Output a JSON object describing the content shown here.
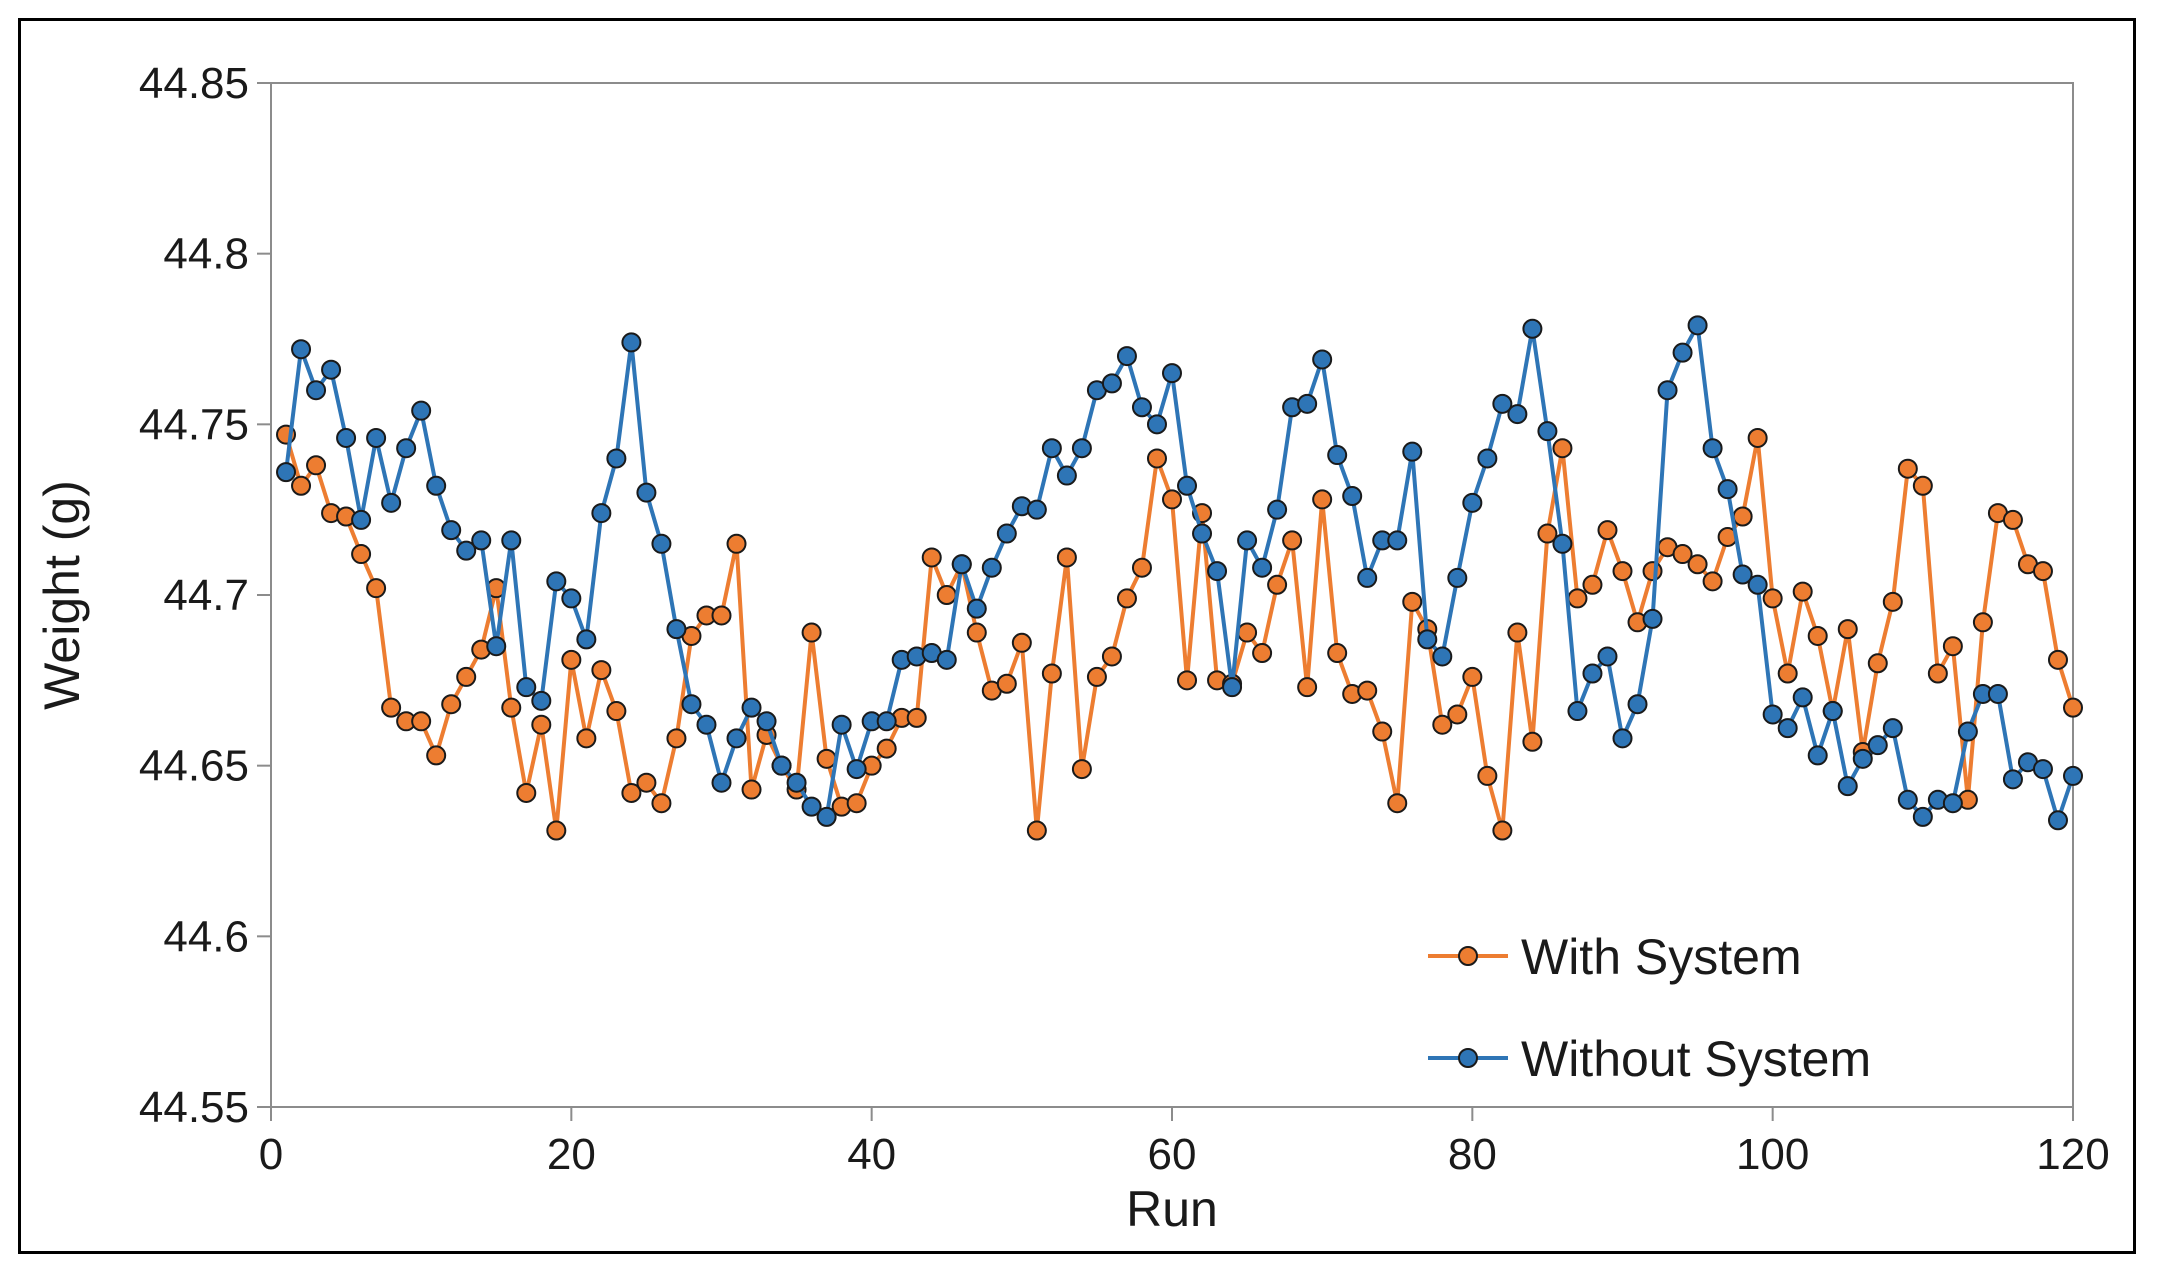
{
  "chart_data": {
    "type": "line",
    "title": "",
    "xlabel": "Run",
    "ylabel": "Weight (g)",
    "xlim": [
      0,
      120
    ],
    "ylim": [
      44.55,
      44.85
    ],
    "xticks": [
      0,
      20,
      40,
      60,
      80,
      100,
      120
    ],
    "yticks": [
      44.55,
      44.6,
      44.65,
      44.7,
      44.75,
      44.8,
      44.85
    ],
    "ytick_labels": [
      "44.55",
      "44.6",
      "44.65",
      "44.7",
      "44.75",
      "44.8",
      "44.85"
    ],
    "xtick_labels": [
      "0",
      "20",
      "40",
      "60",
      "80",
      "100",
      "120"
    ],
    "legend_position": "bottom-right",
    "grid": false,
    "x": [
      1,
      2,
      3,
      4,
      5,
      6,
      7,
      8,
      9,
      10,
      11,
      12,
      13,
      14,
      15,
      16,
      17,
      18,
      19,
      20,
      21,
      22,
      23,
      24,
      25,
      26,
      27,
      28,
      29,
      30,
      31,
      32,
      33,
      34,
      35,
      36,
      37,
      38,
      39,
      40,
      41,
      42,
      43,
      44,
      45,
      46,
      47,
      48,
      49,
      50,
      51,
      52,
      53,
      54,
      55,
      56,
      57,
      58,
      59,
      60,
      61,
      62,
      63,
      64,
      65,
      66,
      67,
      68,
      69,
      70,
      71,
      72,
      73,
      74,
      75,
      76,
      77,
      78,
      79,
      80,
      81,
      82,
      83,
      84,
      85,
      86,
      87,
      88,
      89,
      90,
      91,
      92,
      93,
      94,
      95,
      96,
      97,
      98,
      99,
      100,
      101,
      102,
      103,
      104,
      105,
      106,
      107,
      108,
      109,
      110,
      111,
      112,
      113,
      114,
      115,
      116,
      117,
      118,
      119,
      120
    ],
    "series": [
      {
        "name": "With System",
        "color": "#ED7D31",
        "values": [
          44.747,
          44.732,
          44.738,
          44.724,
          44.723,
          44.712,
          44.702,
          44.667,
          44.663,
          44.663,
          44.653,
          44.668,
          44.676,
          44.684,
          44.702,
          44.667,
          44.642,
          44.662,
          44.631,
          44.681,
          44.658,
          44.678,
          44.666,
          44.642,
          44.645,
          44.639,
          44.658,
          44.688,
          44.694,
          44.694,
          44.715,
          44.643,
          44.659,
          44.65,
          44.643,
          44.689,
          44.652,
          44.638,
          44.639,
          44.65,
          44.655,
          44.664,
          44.664,
          44.711,
          44.7,
          44.709,
          44.689,
          44.672,
          44.674,
          44.686,
          44.631,
          44.677,
          44.711,
          44.649,
          44.676,
          44.682,
          44.699,
          44.708,
          44.74,
          44.728,
          44.675,
          44.724,
          44.675,
          44.674,
          44.689,
          44.683,
          44.703,
          44.716,
          44.673,
          44.728,
          44.683,
          44.671,
          44.672,
          44.66,
          44.639,
          44.698,
          44.69,
          44.662,
          44.665,
          44.676,
          44.647,
          44.631,
          44.689,
          44.657,
          44.718,
          44.743,
          44.699,
          44.703,
          44.719,
          44.707,
          44.692,
          44.707,
          44.714,
          44.712,
          44.709,
          44.704,
          44.717,
          44.723,
          44.746,
          44.699,
          44.677,
          44.701,
          44.688,
          44.666,
          44.69,
          44.654,
          44.68,
          44.698,
          44.737,
          44.732,
          44.677,
          44.685,
          44.64,
          44.692,
          44.724,
          44.722,
          44.709,
          44.707,
          44.681,
          44.667
        ]
      },
      {
        "name": "Without System",
        "color": "#2E75B6",
        "values": [
          44.736,
          44.772,
          44.76,
          44.766,
          44.746,
          44.722,
          44.746,
          44.727,
          44.743,
          44.754,
          44.732,
          44.719,
          44.713,
          44.716,
          44.685,
          44.716,
          44.673,
          44.669,
          44.704,
          44.699,
          44.687,
          44.724,
          44.74,
          44.774,
          44.73,
          44.715,
          44.69,
          44.668,
          44.662,
          44.645,
          44.658,
          44.667,
          44.663,
          44.65,
          44.645,
          44.638,
          44.635,
          44.662,
          44.649,
          44.663,
          44.663,
          44.681,
          44.682,
          44.683,
          44.681,
          44.709,
          44.696,
          44.708,
          44.718,
          44.726,
          44.725,
          44.743,
          44.735,
          44.743,
          44.76,
          44.762,
          44.77,
          44.755,
          44.75,
          44.765,
          44.732,
          44.718,
          44.707,
          44.673,
          44.716,
          44.708,
          44.725,
          44.755,
          44.756,
          44.769,
          44.741,
          44.729,
          44.705,
          44.716,
          44.716,
          44.742,
          44.687,
          44.682,
          44.705,
          44.727,
          44.74,
          44.756,
          44.753,
          44.778,
          44.748,
          44.715,
          44.666,
          44.677,
          44.682,
          44.658,
          44.668,
          44.693,
          44.76,
          44.771,
          44.779,
          44.743,
          44.731,
          44.706,
          44.703,
          44.665,
          44.661,
          44.67,
          44.653,
          44.666,
          44.644,
          44.652,
          44.656,
          44.661,
          44.64,
          44.635,
          44.64,
          44.639,
          44.66,
          44.671,
          44.671,
          44.646,
          44.651,
          44.649,
          44.634,
          44.647
        ]
      }
    ]
  }
}
